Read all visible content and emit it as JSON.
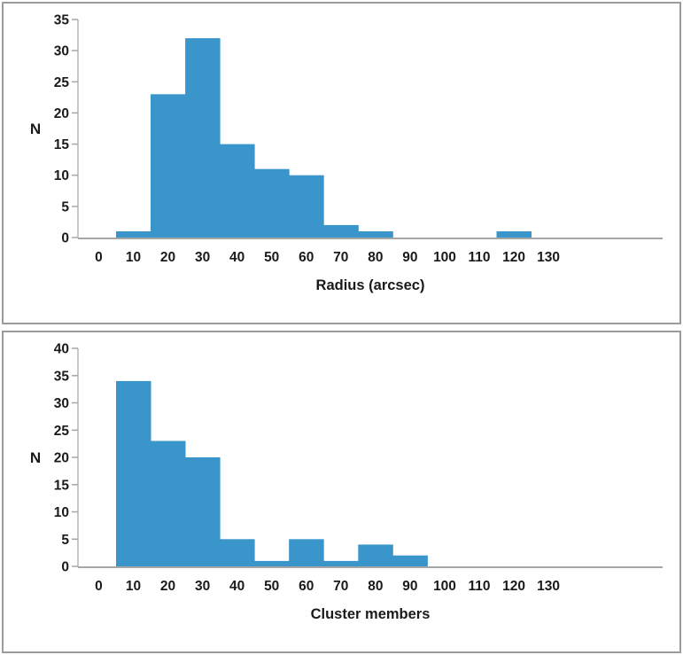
{
  "page": {
    "background": "#ffffff",
    "panel_border_color": "#9b9b9b"
  },
  "chart_data": [
    {
      "type": "bar",
      "subtype": "histogram",
      "title": "",
      "xlabel": "Radius (arcsec)",
      "ylabel": "N",
      "bin_width": 10,
      "bin_centers": [
        10,
        20,
        30,
        40,
        50,
        60,
        70,
        80,
        90,
        100,
        110,
        120
      ],
      "values": [
        1,
        23,
        32,
        15,
        11,
        10,
        2,
        1,
        0,
        0,
        0,
        1
      ],
      "x_ticks": [
        0,
        10,
        20,
        30,
        40,
        50,
        60,
        70,
        80,
        90,
        100,
        110,
        120,
        130
      ],
      "xlim": [
        -6,
        163
      ],
      "ylim": [
        0,
        35
      ],
      "y_tick_step": 5,
      "grid": false,
      "legend": "none",
      "bar_color": "#3a96ca",
      "axis_color": "#a6a6a6",
      "y_axis_color": "#b5b5b5",
      "text_color": "#1a1a1a"
    },
    {
      "type": "bar",
      "subtype": "histogram",
      "title": "",
      "xlabel": "Cluster members",
      "ylabel": "N",
      "bin_width": 10,
      "bin_centers": [
        10,
        20,
        30,
        40,
        50,
        60,
        70,
        80,
        90
      ],
      "values": [
        34,
        23,
        20,
        5,
        1,
        5,
        1,
        4,
        2
      ],
      "x_ticks": [
        0,
        10,
        20,
        30,
        40,
        50,
        60,
        70,
        80,
        90,
        100,
        110,
        120,
        130
      ],
      "xlim": [
        -6,
        163
      ],
      "ylim": [
        0,
        40
      ],
      "y_tick_step": 5,
      "grid": false,
      "legend": "none",
      "bar_color": "#3a96ca",
      "axis_color": "#a6a6a6",
      "y_axis_color": "#b5b5b5",
      "text_color": "#1a1a1a"
    }
  ]
}
